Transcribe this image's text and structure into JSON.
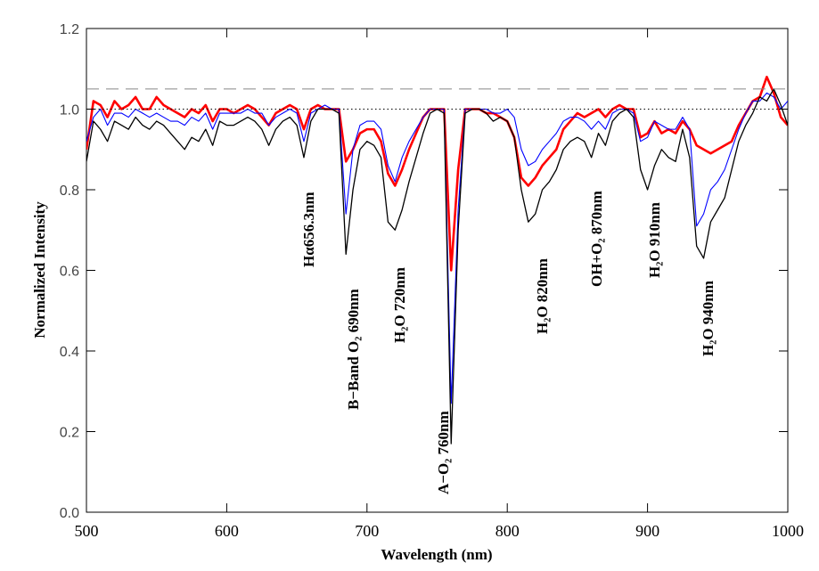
{
  "chart_data": {
    "type": "line",
    "xlabel": "Wavelength (nm)",
    "ylabel": "Normalized Intensity",
    "x": [
      500,
      505,
      510,
      515,
      520,
      525,
      530,
      535,
      540,
      545,
      550,
      555,
      560,
      565,
      570,
      575,
      580,
      585,
      590,
      595,
      600,
      605,
      610,
      615,
      620,
      625,
      630,
      635,
      640,
      645,
      650,
      655,
      660,
      665,
      670,
      675,
      680,
      685,
      690,
      695,
      700,
      705,
      710,
      715,
      720,
      725,
      730,
      735,
      740,
      745,
      750,
      755,
      760,
      765,
      770,
      775,
      780,
      785,
      790,
      795,
      800,
      805,
      810,
      815,
      820,
      825,
      830,
      835,
      840,
      845,
      850,
      855,
      860,
      865,
      870,
      875,
      880,
      885,
      890,
      895,
      900,
      905,
      910,
      915,
      920,
      925,
      930,
      935,
      940,
      945,
      950,
      955,
      960,
      965,
      970,
      975,
      980,
      985,
      990,
      995,
      1000
    ],
    "series": [
      {
        "color": "#000000",
        "values": [
          0.87,
          0.97,
          0.95,
          0.92,
          0.97,
          0.96,
          0.95,
          0.98,
          0.96,
          0.95,
          0.97,
          0.96,
          0.94,
          0.92,
          0.9,
          0.93,
          0.92,
          0.95,
          0.91,
          0.97,
          0.96,
          0.96,
          0.97,
          0.98,
          0.97,
          0.95,
          0.91,
          0.95,
          0.97,
          0.98,
          0.96,
          0.88,
          0.97,
          1.0,
          1.0,
          1.0,
          0.99,
          0.64,
          0.8,
          0.9,
          0.92,
          0.91,
          0.88,
          0.72,
          0.7,
          0.75,
          0.82,
          0.88,
          0.94,
          0.99,
          1.0,
          0.99,
          0.17,
          0.7,
          0.99,
          1.0,
          1.0,
          0.99,
          0.97,
          0.98,
          0.97,
          0.93,
          0.8,
          0.72,
          0.74,
          0.8,
          0.82,
          0.85,
          0.9,
          0.92,
          0.93,
          0.92,
          0.88,
          0.94,
          0.91,
          0.97,
          0.99,
          1.0,
          0.98,
          0.85,
          0.8,
          0.86,
          0.9,
          0.88,
          0.87,
          0.95,
          0.88,
          0.66,
          0.63,
          0.72,
          0.75,
          0.78,
          0.85,
          0.92,
          0.96,
          0.99,
          1.03,
          1.02,
          1.05,
          1.01,
          0.96
        ]
      },
      {
        "color": "#0000ff",
        "values": [
          0.92,
          0.98,
          1.0,
          0.96,
          0.99,
          0.99,
          0.98,
          1.0,
          0.99,
          0.98,
          0.99,
          0.98,
          0.97,
          0.97,
          0.96,
          0.98,
          0.97,
          0.99,
          0.95,
          0.99,
          0.99,
          0.99,
          0.99,
          1.0,
          0.99,
          0.99,
          0.96,
          0.98,
          0.99,
          1.0,
          0.99,
          0.92,
          0.99,
          1.0,
          1.01,
          1.0,
          1.0,
          0.74,
          0.9,
          0.96,
          0.97,
          0.97,
          0.95,
          0.86,
          0.82,
          0.88,
          0.92,
          0.95,
          0.98,
          1.0,
          1.0,
          1.0,
          0.27,
          0.75,
          1.0,
          1.0,
          1.0,
          1.0,
          0.99,
          0.99,
          1.0,
          0.98,
          0.9,
          0.86,
          0.87,
          0.9,
          0.92,
          0.94,
          0.97,
          0.98,
          0.98,
          0.97,
          0.95,
          0.97,
          0.95,
          0.99,
          1.0,
          1.0,
          0.99,
          0.92,
          0.93,
          0.97,
          0.96,
          0.95,
          0.95,
          0.98,
          0.95,
          0.71,
          0.74,
          0.8,
          0.82,
          0.85,
          0.9,
          0.95,
          0.99,
          1.02,
          1.02,
          1.04,
          1.03,
          1.0,
          1.02
        ]
      },
      {
        "color": "#ff0000",
        "values": [
          0.9,
          1.02,
          1.01,
          0.98,
          1.02,
          1.0,
          1.01,
          1.03,
          1.0,
          1.0,
          1.03,
          1.01,
          1.0,
          0.99,
          0.98,
          1.0,
          0.99,
          1.01,
          0.97,
          1.0,
          1.0,
          0.99,
          1.0,
          1.01,
          1.0,
          0.98,
          0.96,
          0.99,
          1.0,
          1.01,
          1.0,
          0.95,
          1.0,
          1.01,
          1.0,
          1.0,
          1.0,
          0.87,
          0.9,
          0.94,
          0.95,
          0.95,
          0.92,
          0.84,
          0.81,
          0.85,
          0.9,
          0.94,
          0.98,
          1.0,
          1.0,
          1.0,
          0.6,
          0.85,
          1.0,
          1.0,
          1.0,
          0.99,
          0.99,
          0.98,
          0.97,
          0.93,
          0.83,
          0.81,
          0.83,
          0.86,
          0.88,
          0.9,
          0.95,
          0.97,
          0.99,
          0.98,
          0.99,
          1.0,
          0.98,
          1.0,
          1.01,
          1.0,
          1.0,
          0.93,
          0.94,
          0.97,
          0.94,
          0.95,
          0.94,
          0.97,
          0.95,
          0.91,
          0.9,
          0.89,
          0.9,
          0.91,
          0.92,
          0.96,
          0.99,
          1.02,
          1.03,
          1.08,
          1.04,
          0.98,
          0.96
        ]
      }
    ],
    "xlim": [
      500,
      1000
    ],
    "xticks": [
      500,
      600,
      700,
      800,
      900,
      1000
    ],
    "ylim": [
      0,
      1.2
    ],
    "yticks": [
      {
        "value": 0,
        "label": "0.0"
      },
      0.2,
      0.4,
      0.6,
      0.8,
      {
        "value": 1,
        "label": "1.0"
      },
      1.2
    ],
    "hlines": [
      {
        "value": 1.05,
        "style": "dashed",
        "color": "#888888"
      },
      {
        "value": 1,
        "style": "dotted",
        "color": "#000000"
      }
    ],
    "annotations": [
      "Hα656.3nm",
      "B−Band O₂ 690nm",
      "H₂O 720nm",
      "A−O₂ 760nm",
      "H₂O 820nm",
      "OH+O₂ 870nm",
      "H₂O 910nm",
      "H₂O 940nm"
    ]
  }
}
